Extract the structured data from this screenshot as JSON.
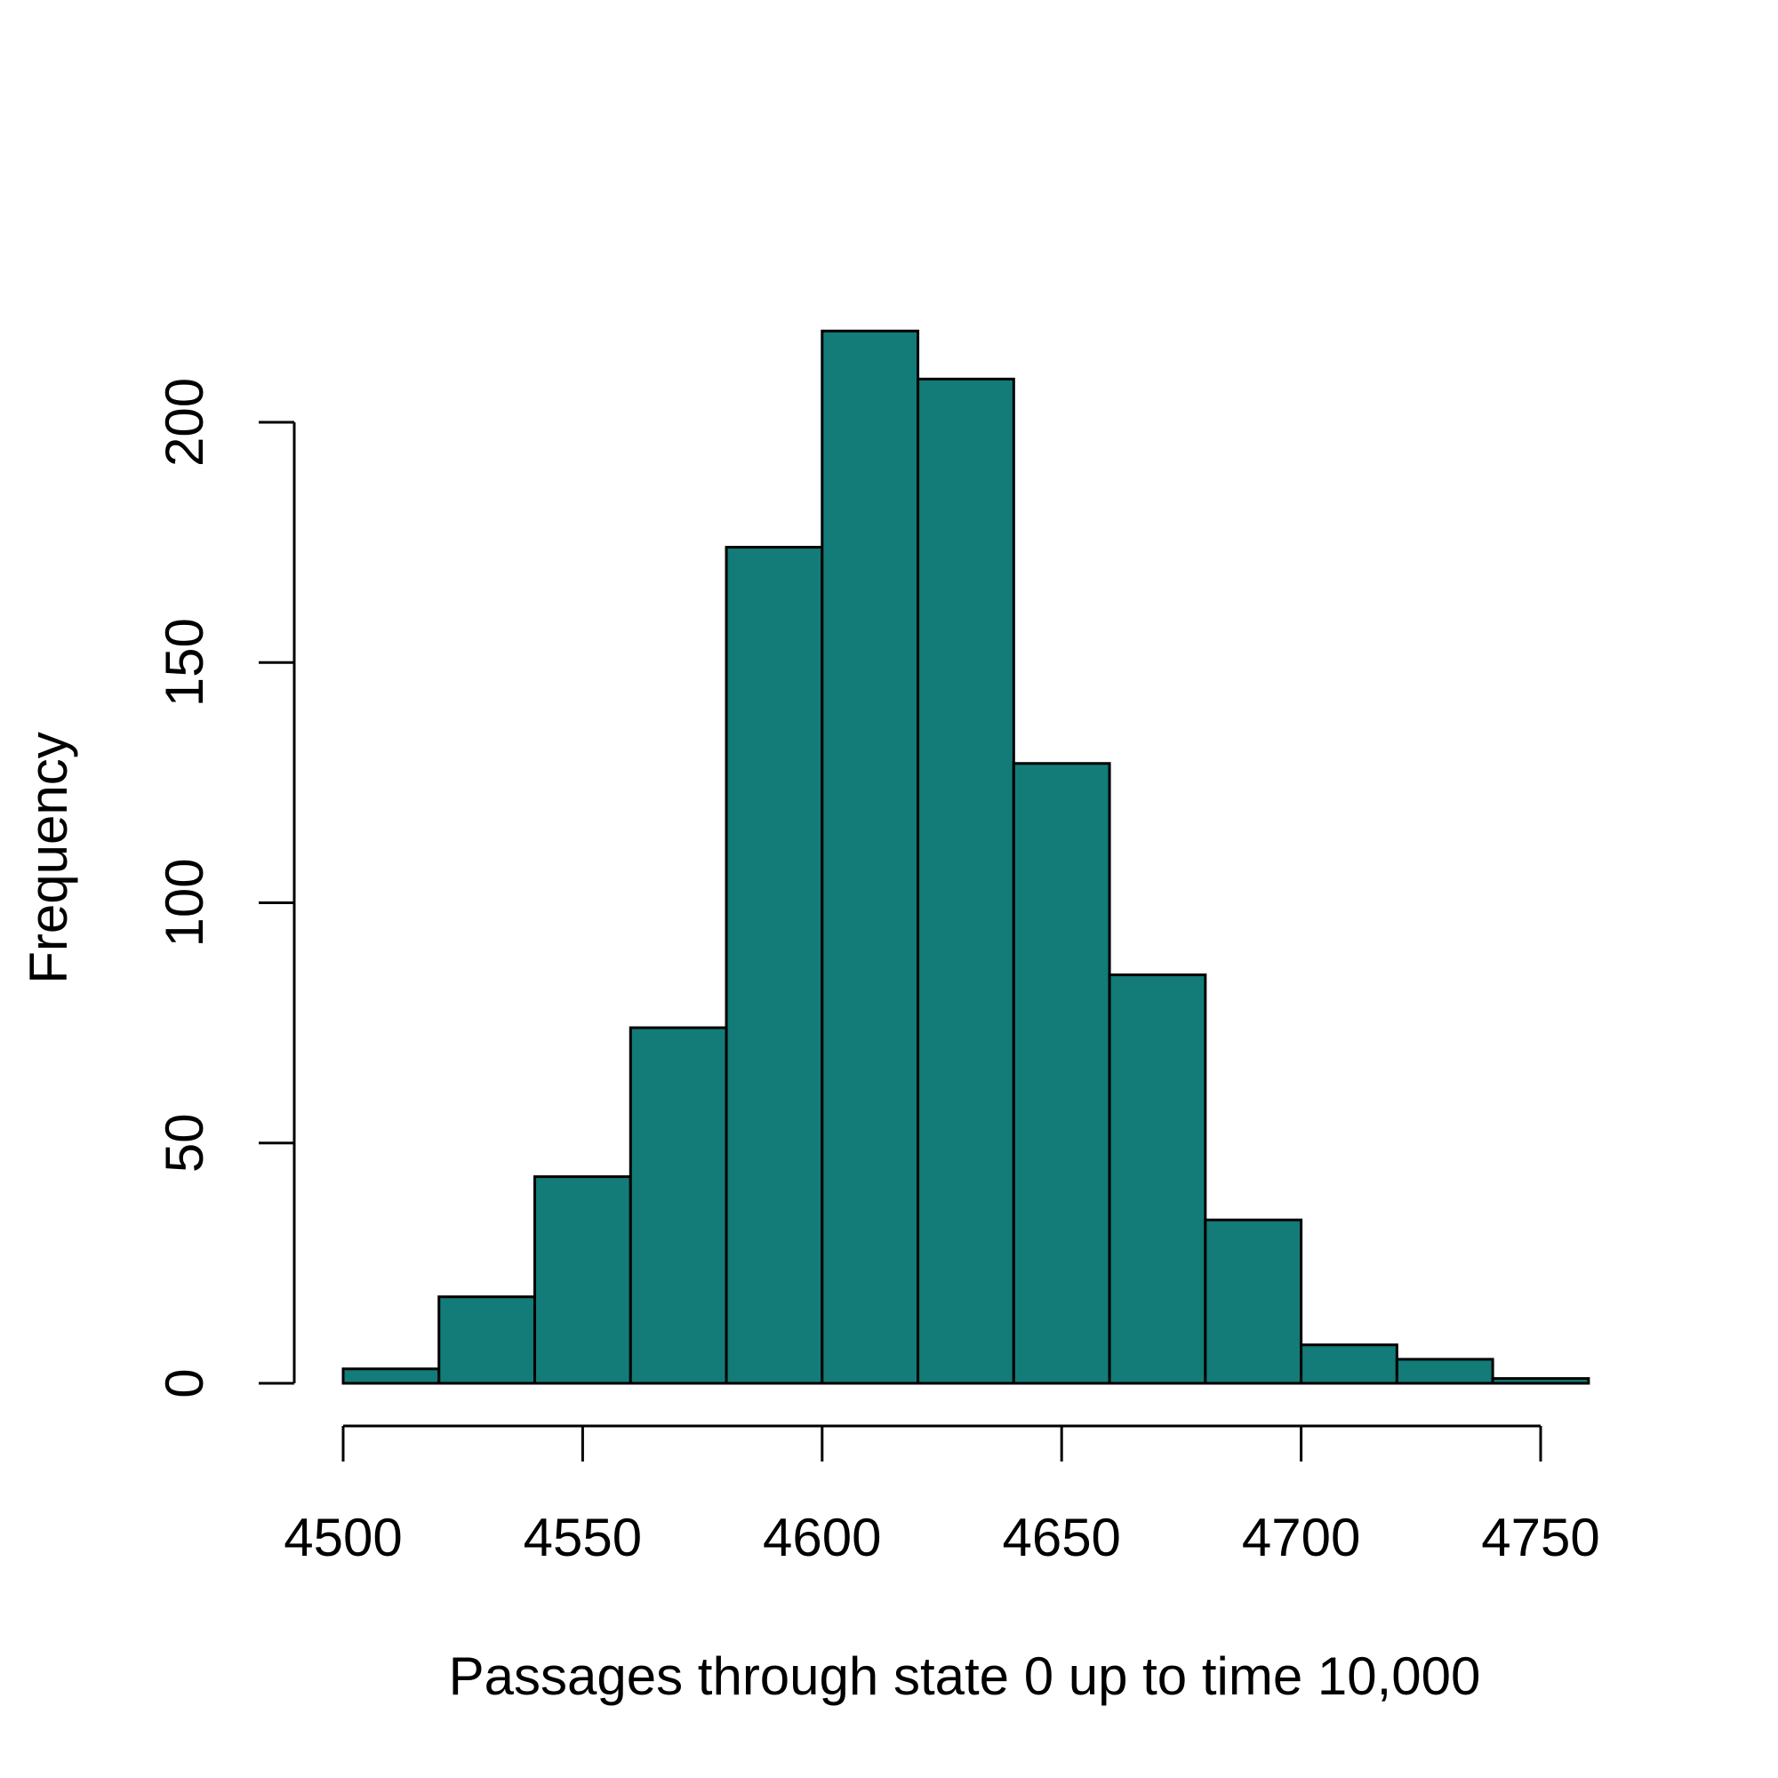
{
  "chart_data": {
    "type": "bar",
    "title": "",
    "xlabel": "Passages through state 0 up to time 10,000",
    "ylabel": "Frequency",
    "bin_edges": [
      4500,
      4520,
      4540,
      4560,
      4580,
      4600,
      4620,
      4640,
      4660,
      4680,
      4700,
      4720,
      4740,
      4760
    ],
    "values": [
      3,
      18,
      43,
      74,
      174,
      219,
      209,
      129,
      85,
      34,
      8,
      5,
      1
    ],
    "xlim": [
      4500,
      4760
    ],
    "ylim": [
      0,
      219
    ],
    "x_ticks": [
      4500,
      4550,
      4600,
      4650,
      4700,
      4750
    ],
    "y_ticks": [
      0,
      50,
      100,
      150,
      200
    ],
    "x_tick_labels": [
      "4500",
      "4550",
      "4600",
      "4650",
      "4700",
      "4750"
    ],
    "y_tick_labels": [
      "0",
      "50",
      "100",
      "150",
      "200"
    ],
    "bar_color": "#137B78",
    "edge_color": "#000000",
    "grid": false,
    "legend": "none"
  }
}
